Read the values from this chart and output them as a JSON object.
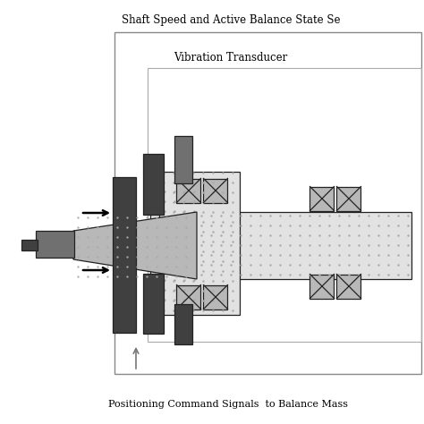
{
  "title_top": "Shaft Speed and Active Balance State Se",
  "label_vib": "Vibration Transducer",
  "label_pos": "Positioning Command Signals  to Balance Mass",
  "bg_color": "#ffffff",
  "gray_dark": "#404040",
  "gray_med": "#707070",
  "gray_light": "#b8b8b8",
  "gray_xlight": "#e2e2e2",
  "border_color": "#222222",
  "dot_color": "#aaaaaa",
  "box_color": "#999999",
  "arrow_color": "#888888"
}
